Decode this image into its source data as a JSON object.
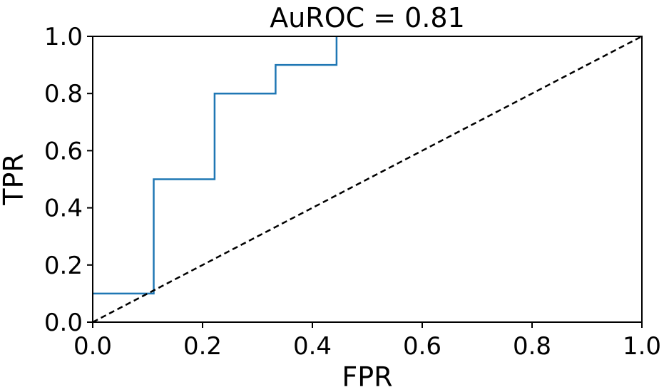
{
  "chart_data": {
    "type": "line",
    "title": "AuROC = 0.81",
    "xlabel": "FPR",
    "ylabel": "TPR",
    "xlim": [
      0,
      1
    ],
    "ylim": [
      0,
      1
    ],
    "xticks": [
      "0.0",
      "0.2",
      "0.4",
      "0.6",
      "0.8",
      "1.0"
    ],
    "yticks": [
      "0.0",
      "0.2",
      "0.4",
      "0.6",
      "0.8",
      "1.0"
    ],
    "grid": false,
    "series": [
      {
        "style": "step",
        "color": "#1f77b4",
        "x": [
          0.0,
          0.111,
          0.111,
          0.222,
          0.222,
          0.333,
          0.333,
          0.444,
          0.444
        ],
        "y": [
          0.1,
          0.1,
          0.5,
          0.5,
          0.8,
          0.8,
          0.9,
          0.9,
          1.0
        ]
      },
      {
        "style": "dashed",
        "color": "#000000",
        "x": [
          0.0,
          1.0
        ],
        "y": [
          0.0,
          1.0
        ]
      }
    ]
  }
}
